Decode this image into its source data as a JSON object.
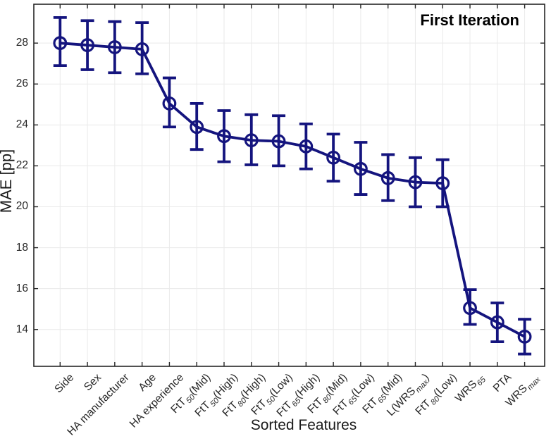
{
  "chart_data": {
    "type": "line",
    "error_bars": true,
    "marker": "open-circle",
    "annotation": "First Iteration",
    "xlabel": "Sorted Features",
    "ylabel": "MAE [pp]",
    "categories": [
      "Side",
      "Sex",
      "HA manufacturer",
      "Age",
      "HA experience",
      "FtT_{50}(Mid)",
      "FtT_{50}(High)",
      "FtT_{80}(High)",
      "FtT_{50}(Low)",
      "FtT_{65}(High)",
      "FtT_{80}(Mid)",
      "FtT_{65}(Low)",
      "FtT_{65}(Mid)",
      "L(WRS_{max})",
      "FtT_{80}(Low)",
      "WRS_{65}",
      "PTA",
      "WRS_{max}"
    ],
    "values": [
      28.0,
      27.9,
      27.8,
      27.7,
      25.05,
      23.9,
      23.45,
      23.25,
      23.2,
      22.95,
      22.4,
      21.85,
      21.4,
      21.2,
      21.15,
      15.05,
      14.35,
      13.65
    ],
    "err_low": [
      26.9,
      26.7,
      26.55,
      26.5,
      23.9,
      22.8,
      22.2,
      22.05,
      22.0,
      21.85,
      21.25,
      20.6,
      20.3,
      20.0,
      20.0,
      14.25,
      13.4,
      12.8
    ],
    "err_high": [
      29.25,
      29.1,
      29.05,
      29.0,
      26.3,
      25.05,
      24.7,
      24.5,
      24.45,
      24.05,
      23.55,
      23.15,
      22.55,
      22.4,
      22.3,
      15.95,
      15.3,
      14.5
    ],
    "yticks": [
      14,
      16,
      18,
      20,
      22,
      24,
      26,
      28
    ],
    "ylim": [
      12.2,
      29.9
    ],
    "grid": true,
    "colors": {
      "line": "#14147e",
      "grid": "#eaeaea",
      "axis": "#262626",
      "tick_label": "#262626",
      "annotation": "#000000",
      "background": "#ffffff"
    }
  }
}
